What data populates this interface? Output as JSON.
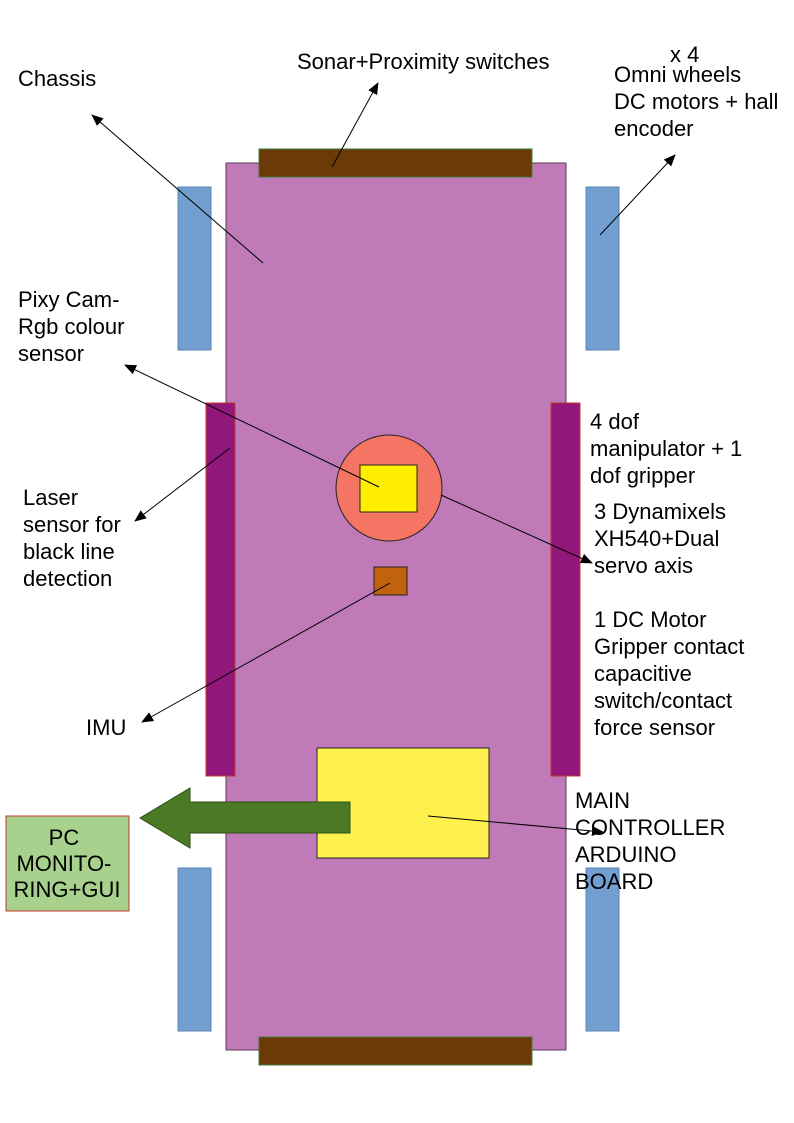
{
  "labels": {
    "chassis": "Chassis",
    "sonar": "Sonar+Proximity switches",
    "x4": "x 4",
    "omni": [
      "Omni wheels",
      "DC motors + hall",
      "encoder"
    ],
    "pixy": [
      "Pixy Cam-",
      "Rgb colour",
      "sensor"
    ],
    "laser": [
      "Laser",
      "sensor for",
      "black line",
      "detection"
    ],
    "manip": [
      "4 dof",
      "manipulator + 1",
      "dof gripper"
    ],
    "dyna": [
      "3 Dynamixels",
      "XH540+Dual",
      "servo axis"
    ],
    "gripper": [
      "1 DC Motor",
      "Gripper contact",
      "capacitive",
      "switch/contact",
      "force sensor"
    ],
    "imu": "IMU",
    "controller": [
      "MAIN",
      "CONTROLLER",
      "ARDUINO",
      "BOARD"
    ],
    "pc": [
      "PC",
      "MONITO-",
      "RING+GUI"
    ]
  },
  "colors": {
    "chassis": "#bf7ab7",
    "bumper": "#6b3a08",
    "wheel": "#729fcf",
    "rail": "#91177a",
    "camera_circle": "#f47563",
    "camera_square": "#ffee00",
    "imu": "#c1620e",
    "controller": "#fff14d",
    "arrow": "#4a7a26",
    "pc_box": "#a9d18e",
    "pc_border": "#c0392b"
  }
}
